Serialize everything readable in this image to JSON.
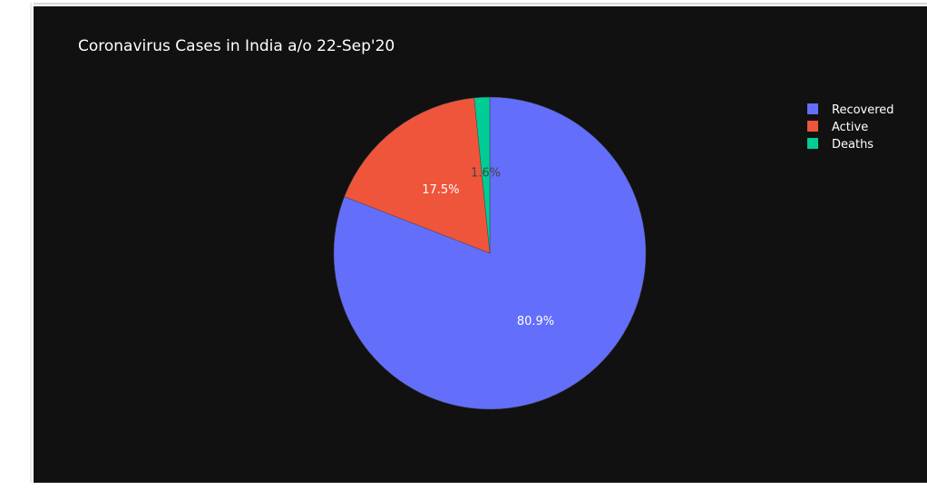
{
  "chart_data": {
    "type": "pie",
    "title": "Coronavirus Cases in India a/o 22-Sep'20",
    "labels": [
      "Recovered",
      "Active",
      "Deaths"
    ],
    "values": [
      80.9,
      17.5,
      1.6
    ],
    "text_labels": [
      "80.9%",
      "17.5%",
      "1.6%"
    ],
    "colors": [
      "#636efa",
      "#ef553b",
      "#00cc96"
    ],
    "legend_position": "top-right",
    "direction": "clockwise",
    "start_angle": 90
  }
}
